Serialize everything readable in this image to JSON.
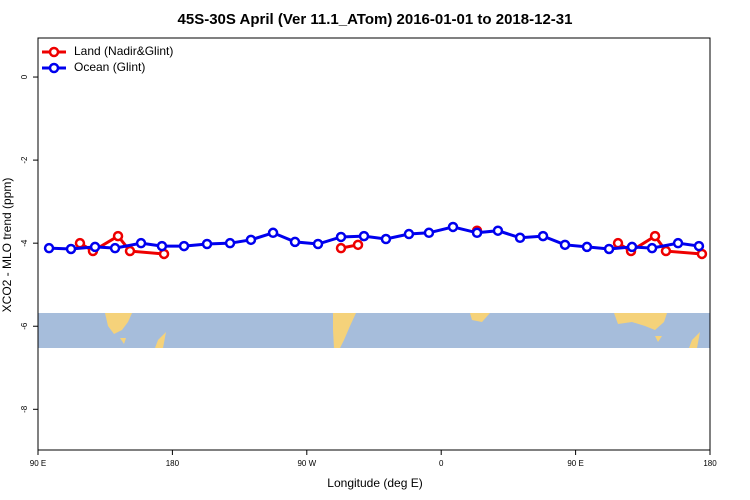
{
  "chart_data": {
    "type": "line",
    "title": "45S-30S April (Ver 11.1_ATom)   2016-01-01 to 2018-12-31",
    "x_label": "Longitude (deg E)",
    "y_label": "XCO2 - MLO trend (ppm)",
    "xlim": [
      90,
      540
    ],
    "xticks": [
      {
        "value": 90,
        "label": "90 E"
      },
      180,
      {
        "value": 270,
        "label": "90 W"
      },
      {
        "value": 360,
        "label": "0"
      },
      {
        "value": 450,
        "label": "90 E"
      },
      {
        "value": 540,
        "label": "180"
      }
    ],
    "ylim": [
      -8.98,
      0.94
    ],
    "yticks": [
      0,
      -2,
      -4,
      -6,
      -8
    ],
    "legend": "top-left",
    "series": [
      {
        "name": "Land (Nadir&Glint)",
        "color": "#ee0000",
        "x": [
          118.1,
          126.8,
          143.6,
          151.6,
          174.4,
          null,
          292.9,
          304.3,
          null,
          384.0,
          null,
          478.4,
          487.1,
          503.2,
          510.5,
          534.6
        ],
        "values": [
          -4.0,
          -4.19,
          -3.83,
          -4.19,
          -4.26,
          null,
          -4.12,
          -4.04,
          null,
          -3.7,
          null,
          -4.0,
          -4.19,
          -3.83,
          -4.19,
          -4.26
        ]
      },
      {
        "name": "Ocean (Glint)",
        "color": "#0000ee",
        "x": [
          97.4,
          112.1,
          128.2,
          141.6,
          159.0,
          173.0,
          187.8,
          203.2,
          218.6,
          232.6,
          247.4,
          262.1,
          277.5,
          292.9,
          308.3,
          323.0,
          338.4,
          351.8,
          367.9,
          384.0,
          398.0,
          412.8,
          428.2,
          442.9,
          457.6,
          472.4,
          487.8,
          501.2,
          518.6,
          532.6
        ],
        "values": [
          -4.12,
          -4.14,
          -4.09,
          -4.12,
          -4.0,
          -4.07,
          -4.07,
          -4.02,
          -4.0,
          -3.92,
          -3.75,
          -3.97,
          -4.02,
          -3.85,
          -3.83,
          -3.9,
          -3.78,
          -3.75,
          -3.61,
          -3.75,
          -3.7,
          -3.87,
          -3.83,
          -4.04,
          -4.09,
          -4.14,
          -4.09,
          -4.12,
          -4.0,
          -4.07
        ]
      }
    ]
  }
}
